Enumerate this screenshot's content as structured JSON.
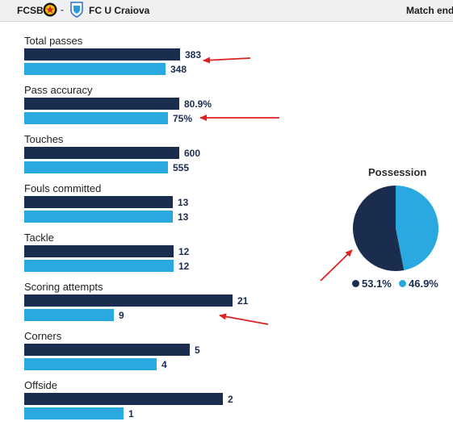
{
  "header": {
    "home_team": "FCSB",
    "separator": "-",
    "away_team": "FC U Craiova",
    "status": "Match ended"
  },
  "colors": {
    "home": "#1b2d4f",
    "away": "#2aa8e0",
    "annotation": "#e02020"
  },
  "chart_data": [
    {
      "type": "bar",
      "orientation": "horizontal",
      "series": [
        {
          "name": "FCSB",
          "values": [
            383,
            80.9,
            600,
            13,
            12,
            21,
            5,
            2
          ]
        },
        {
          "name": "FC U Craiova",
          "values": [
            348,
            75,
            555,
            13,
            12,
            9,
            4,
            1
          ]
        }
      ],
      "categories": [
        "Total passes",
        "Pass accuracy",
        "Touches",
        "Fouls committed",
        "Tackle",
        "Scoring attempts",
        "Corners",
        "Offside"
      ],
      "value_labels": [
        [
          "383",
          "348"
        ],
        [
          "80.9%",
          "75%"
        ],
        [
          "600",
          "555"
        ],
        [
          "13",
          "13"
        ],
        [
          "12",
          "12"
        ],
        [
          "21",
          "9"
        ],
        [
          "5",
          "4"
        ],
        [
          "2",
          "1"
        ]
      ]
    },
    {
      "type": "pie",
      "title": "Possession",
      "slices": [
        {
          "name": "FCSB",
          "value": 53.1,
          "label": "53.1%"
        },
        {
          "name": "FC U Craiova",
          "value": 46.9,
          "label": "46.9%"
        }
      ]
    }
  ]
}
